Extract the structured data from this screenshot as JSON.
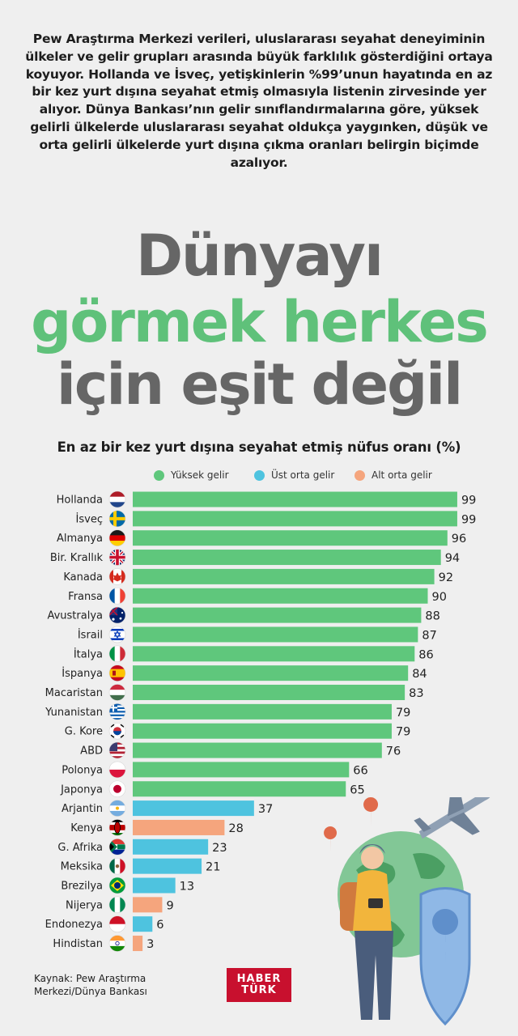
{
  "intro_text": "Pew Araştırma Merkezi verileri, uluslararası seyahat deneyiminin ülkeler ve gelir grupları arasında büyük farklılık gösterdiğini ortaya koyuyor. Hollanda ve İsveç, yetişkinlerin %99’unun hayatında en az bir kez yurt dışına seyahat etmiş olmasıyla listenin zirvesinde yer alıyor. Dünya Bankası’nın gelir sınıflandırmalarına göre, yüksek gelirli ülkelerde uluslararası seyahat oldukça yaygınken, düşük ve orta gelirli ülkelerde yurt dışına çıkma oranları belirgin biçimde azalıyor.",
  "headline": {
    "line1": "Dünyayı",
    "line2": "görmek herkes",
    "line3": "için eşit değil"
  },
  "colors": {
    "high": "#5fc77c",
    "upper_middle": "#4ec3df",
    "lower_middle": "#f5a57d",
    "headline_gray": "#666666",
    "headline_green": "#5fc17a",
    "brand_red": "#c8102e"
  },
  "chart_data": {
    "type": "bar",
    "orientation": "horizontal",
    "title": "En az bir kez yurt dışına seyahat etmiş nüfus oranı (%)",
    "legend_position": "top",
    "xlim": [
      0,
      100
    ],
    "grid": false,
    "series": [
      {
        "name": "Yüksek gelir",
        "key": "high"
      },
      {
        "name": "Üst orta gelir",
        "key": "upper_middle"
      },
      {
        "name": "Alt orta gelir",
        "key": "lower_middle"
      }
    ],
    "categories": [
      "Hollanda",
      "İsveç",
      "Almanya",
      "Bir. Krallık",
      "Kanada",
      "Fransa",
      "Avustralya",
      "İsrail",
      "İtalya",
      "İspanya",
      "Macaristan",
      "Yunanistan",
      "G. Kore",
      "ABD",
      "Polonya",
      "Japonya",
      "Arjantin",
      "Kenya",
      "G. Afrika",
      "Meksika",
      "Brezilya",
      "Nijerya",
      "Endonezya",
      "Hindistan"
    ],
    "values": [
      99,
      99,
      96,
      94,
      92,
      90,
      88,
      87,
      86,
      84,
      83,
      79,
      79,
      76,
      66,
      65,
      37,
      28,
      23,
      21,
      13,
      9,
      6,
      3
    ],
    "groups": [
      "high",
      "high",
      "high",
      "high",
      "high",
      "high",
      "high",
      "high",
      "high",
      "high",
      "high",
      "high",
      "high",
      "high",
      "high",
      "high",
      "upper_middle",
      "lower_middle",
      "upper_middle",
      "upper_middle",
      "upper_middle",
      "lower_middle",
      "upper_middle",
      "lower_middle"
    ],
    "flags": [
      "netherlands-flag",
      "sweden-flag",
      "germany-flag",
      "uk-flag",
      "canada-flag",
      "france-flag",
      "australia-flag",
      "israel-flag",
      "italy-flag",
      "spain-flag",
      "hungary-flag",
      "greece-flag",
      "south-korea-flag",
      "usa-flag",
      "poland-flag",
      "japan-flag",
      "argentina-flag",
      "kenya-flag",
      "south-africa-flag",
      "mexico-flag",
      "brazil-flag",
      "nigeria-flag",
      "indonesia-flag",
      "india-flag"
    ]
  },
  "source": {
    "line1": "Kaynak: Pew Araştırma",
    "line2": "Merkezi/Dünya Bankası"
  },
  "logo": {
    "line1": "HABER",
    "line2": "TÜRK"
  }
}
